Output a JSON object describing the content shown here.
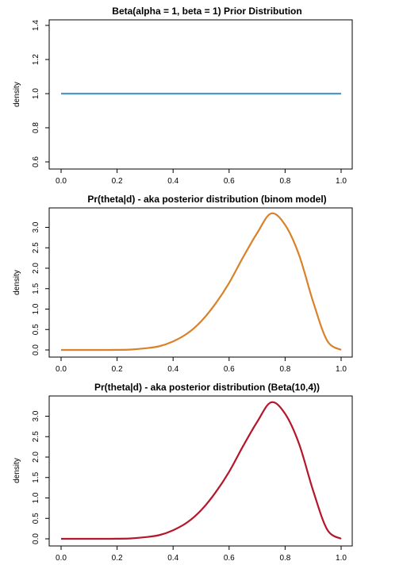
{
  "chart_data": [
    {
      "type": "line",
      "title": "Beta(alpha = 1, beta = 1) Prior Distribution",
      "xlabel": "",
      "ylabel": "density",
      "xlim": [
        0,
        1
      ],
      "ylim": [
        0.6,
        1.4
      ],
      "x_ticks": [
        0,
        0.2,
        0.4,
        0.6,
        0.8,
        1
      ],
      "x_tick_labels": [
        "0.0",
        "0.2",
        "0.4",
        "0.6",
        "0.8",
        "1.0"
      ],
      "y_ticks": [
        0.6,
        0.8,
        1.0,
        1.2,
        1.4
      ],
      "y_tick_labels": [
        "0.6",
        "0.8",
        "1.0",
        "1.2",
        "1.4"
      ],
      "color": "#4a9ac9",
      "grid": false,
      "series": [
        {
          "x": [
            0.0,
            0.1,
            0.2,
            0.3,
            0.4,
            0.5,
            0.6,
            0.7,
            0.8,
            0.9,
            1.0
          ],
          "y": [
            1,
            1,
            1,
            1,
            1,
            1,
            1,
            1,
            1,
            1,
            1
          ]
        }
      ]
    },
    {
      "type": "line",
      "title": "Pr(theta|d) - aka posterior distribution (binom model)",
      "xlabel": "",
      "ylabel": "density",
      "xlim": [
        0,
        1
      ],
      "ylim": [
        0,
        3.34
      ],
      "x_ticks": [
        0,
        0.2,
        0.4,
        0.6,
        0.8,
        1
      ],
      "x_tick_labels": [
        "0.0",
        "0.2",
        "0.4",
        "0.6",
        "0.8",
        "1.0"
      ],
      "y_ticks": [
        0,
        0.5,
        1,
        1.5,
        2,
        2.5,
        3
      ],
      "y_tick_labels": [
        "0.0",
        "0.5",
        "1.0",
        "1.5",
        "2.0",
        "2.5",
        "3.0"
      ],
      "color": "#d9822b",
      "grid": false,
      "series": [
        {
          "x": [
            0.0,
            0.05,
            0.1,
            0.15,
            0.2,
            0.25,
            0.3,
            0.35,
            0.4,
            0.45,
            0.5,
            0.55,
            0.6,
            0.65,
            0.7,
            0.75,
            0.8,
            0.85,
            0.9,
            0.95,
            1.0
          ],
          "y": [
            0,
            0,
            0,
            0,
            0.002,
            0.01,
            0.04,
            0.09,
            0.21,
            0.4,
            0.7,
            1.12,
            1.64,
            2.27,
            2.86,
            3.34,
            3.06,
            2.32,
            1.18,
            0.23,
            0
          ]
        }
      ]
    },
    {
      "type": "line",
      "title": "Pr(theta|d) - aka posterior distribution (Beta(10,4))",
      "xlabel": "",
      "ylabel": "density",
      "xlim": [
        0,
        1
      ],
      "ylim": [
        0,
        3.34
      ],
      "x_ticks": [
        0,
        0.2,
        0.4,
        0.6,
        0.8,
        1
      ],
      "x_tick_labels": [
        "0.0",
        "0.2",
        "0.4",
        "0.6",
        "0.8",
        "1.0"
      ],
      "y_ticks": [
        0,
        0.5,
        1,
        1.5,
        2,
        2.5,
        3
      ],
      "y_tick_labels": [
        "0.0",
        "0.5",
        "1.0",
        "1.5",
        "2.0",
        "2.5",
        "3.0"
      ],
      "color": "#b5162b",
      "grid": false,
      "series": [
        {
          "x": [
            0.0,
            0.05,
            0.1,
            0.15,
            0.2,
            0.25,
            0.3,
            0.35,
            0.4,
            0.45,
            0.5,
            0.55,
            0.6,
            0.65,
            0.7,
            0.75,
            0.8,
            0.85,
            0.9,
            0.95,
            1.0
          ],
          "y": [
            0,
            0,
            0,
            0,
            0.002,
            0.01,
            0.04,
            0.09,
            0.21,
            0.4,
            0.7,
            1.12,
            1.64,
            2.27,
            2.86,
            3.34,
            3.06,
            2.32,
            1.18,
            0.23,
            0
          ]
        }
      ]
    }
  ]
}
